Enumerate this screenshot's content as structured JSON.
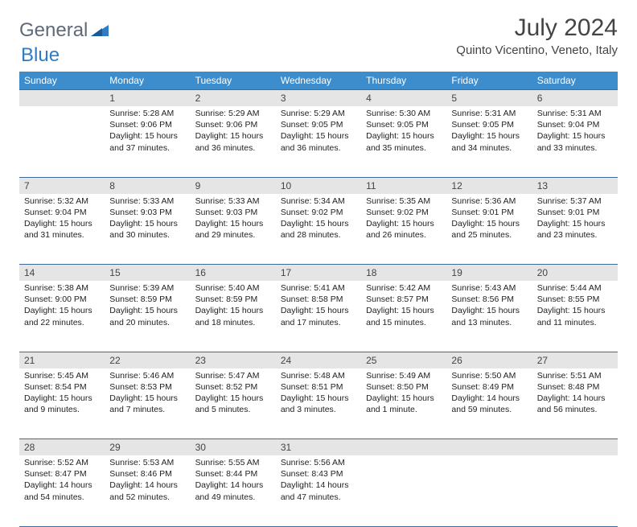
{
  "brand": {
    "name1": "General",
    "name2": "Blue"
  },
  "title": "July 2024",
  "location": "Quinto Vicentino, Veneto, Italy",
  "colors": {
    "header_bg": "#3d8ccc",
    "header_fg": "#ffffff",
    "border": "#3d6a99",
    "daynum_bg": "#e5e5e5",
    "brand_gray": "#5e6a78",
    "brand_blue": "#2e7cc2"
  },
  "weekdays": [
    "Sunday",
    "Monday",
    "Tuesday",
    "Wednesday",
    "Thursday",
    "Friday",
    "Saturday"
  ],
  "weeks": [
    [
      null,
      {
        "n": "1",
        "sr": "Sunrise: 5:28 AM",
        "ss": "Sunset: 9:06 PM",
        "d1": "Daylight: 15 hours",
        "d2": "and 37 minutes."
      },
      {
        "n": "2",
        "sr": "Sunrise: 5:29 AM",
        "ss": "Sunset: 9:06 PM",
        "d1": "Daylight: 15 hours",
        "d2": "and 36 minutes."
      },
      {
        "n": "3",
        "sr": "Sunrise: 5:29 AM",
        "ss": "Sunset: 9:05 PM",
        "d1": "Daylight: 15 hours",
        "d2": "and 36 minutes."
      },
      {
        "n": "4",
        "sr": "Sunrise: 5:30 AM",
        "ss": "Sunset: 9:05 PM",
        "d1": "Daylight: 15 hours",
        "d2": "and 35 minutes."
      },
      {
        "n": "5",
        "sr": "Sunrise: 5:31 AM",
        "ss": "Sunset: 9:05 PM",
        "d1": "Daylight: 15 hours",
        "d2": "and 34 minutes."
      },
      {
        "n": "6",
        "sr": "Sunrise: 5:31 AM",
        "ss": "Sunset: 9:04 PM",
        "d1": "Daylight: 15 hours",
        "d2": "and 33 minutes."
      }
    ],
    [
      {
        "n": "7",
        "sr": "Sunrise: 5:32 AM",
        "ss": "Sunset: 9:04 PM",
        "d1": "Daylight: 15 hours",
        "d2": "and 31 minutes."
      },
      {
        "n": "8",
        "sr": "Sunrise: 5:33 AM",
        "ss": "Sunset: 9:03 PM",
        "d1": "Daylight: 15 hours",
        "d2": "and 30 minutes."
      },
      {
        "n": "9",
        "sr": "Sunrise: 5:33 AM",
        "ss": "Sunset: 9:03 PM",
        "d1": "Daylight: 15 hours",
        "d2": "and 29 minutes."
      },
      {
        "n": "10",
        "sr": "Sunrise: 5:34 AM",
        "ss": "Sunset: 9:02 PM",
        "d1": "Daylight: 15 hours",
        "d2": "and 28 minutes."
      },
      {
        "n": "11",
        "sr": "Sunrise: 5:35 AM",
        "ss": "Sunset: 9:02 PM",
        "d1": "Daylight: 15 hours",
        "d2": "and 26 minutes."
      },
      {
        "n": "12",
        "sr": "Sunrise: 5:36 AM",
        "ss": "Sunset: 9:01 PM",
        "d1": "Daylight: 15 hours",
        "d2": "and 25 minutes."
      },
      {
        "n": "13",
        "sr": "Sunrise: 5:37 AM",
        "ss": "Sunset: 9:01 PM",
        "d1": "Daylight: 15 hours",
        "d2": "and 23 minutes."
      }
    ],
    [
      {
        "n": "14",
        "sr": "Sunrise: 5:38 AM",
        "ss": "Sunset: 9:00 PM",
        "d1": "Daylight: 15 hours",
        "d2": "and 22 minutes."
      },
      {
        "n": "15",
        "sr": "Sunrise: 5:39 AM",
        "ss": "Sunset: 8:59 PM",
        "d1": "Daylight: 15 hours",
        "d2": "and 20 minutes."
      },
      {
        "n": "16",
        "sr": "Sunrise: 5:40 AM",
        "ss": "Sunset: 8:59 PM",
        "d1": "Daylight: 15 hours",
        "d2": "and 18 minutes."
      },
      {
        "n": "17",
        "sr": "Sunrise: 5:41 AM",
        "ss": "Sunset: 8:58 PM",
        "d1": "Daylight: 15 hours",
        "d2": "and 17 minutes."
      },
      {
        "n": "18",
        "sr": "Sunrise: 5:42 AM",
        "ss": "Sunset: 8:57 PM",
        "d1": "Daylight: 15 hours",
        "d2": "and 15 minutes."
      },
      {
        "n": "19",
        "sr": "Sunrise: 5:43 AM",
        "ss": "Sunset: 8:56 PM",
        "d1": "Daylight: 15 hours",
        "d2": "and 13 minutes."
      },
      {
        "n": "20",
        "sr": "Sunrise: 5:44 AM",
        "ss": "Sunset: 8:55 PM",
        "d1": "Daylight: 15 hours",
        "d2": "and 11 minutes."
      }
    ],
    [
      {
        "n": "21",
        "sr": "Sunrise: 5:45 AM",
        "ss": "Sunset: 8:54 PM",
        "d1": "Daylight: 15 hours",
        "d2": "and 9 minutes."
      },
      {
        "n": "22",
        "sr": "Sunrise: 5:46 AM",
        "ss": "Sunset: 8:53 PM",
        "d1": "Daylight: 15 hours",
        "d2": "and 7 minutes."
      },
      {
        "n": "23",
        "sr": "Sunrise: 5:47 AM",
        "ss": "Sunset: 8:52 PM",
        "d1": "Daylight: 15 hours",
        "d2": "and 5 minutes."
      },
      {
        "n": "24",
        "sr": "Sunrise: 5:48 AM",
        "ss": "Sunset: 8:51 PM",
        "d1": "Daylight: 15 hours",
        "d2": "and 3 minutes."
      },
      {
        "n": "25",
        "sr": "Sunrise: 5:49 AM",
        "ss": "Sunset: 8:50 PM",
        "d1": "Daylight: 15 hours",
        "d2": "and 1 minute."
      },
      {
        "n": "26",
        "sr": "Sunrise: 5:50 AM",
        "ss": "Sunset: 8:49 PM",
        "d1": "Daylight: 14 hours",
        "d2": "and 59 minutes."
      },
      {
        "n": "27",
        "sr": "Sunrise: 5:51 AM",
        "ss": "Sunset: 8:48 PM",
        "d1": "Daylight: 14 hours",
        "d2": "and 56 minutes."
      }
    ],
    [
      {
        "n": "28",
        "sr": "Sunrise: 5:52 AM",
        "ss": "Sunset: 8:47 PM",
        "d1": "Daylight: 14 hours",
        "d2": "and 54 minutes."
      },
      {
        "n": "29",
        "sr": "Sunrise: 5:53 AM",
        "ss": "Sunset: 8:46 PM",
        "d1": "Daylight: 14 hours",
        "d2": "and 52 minutes."
      },
      {
        "n": "30",
        "sr": "Sunrise: 5:55 AM",
        "ss": "Sunset: 8:44 PM",
        "d1": "Daylight: 14 hours",
        "d2": "and 49 minutes."
      },
      {
        "n": "31",
        "sr": "Sunrise: 5:56 AM",
        "ss": "Sunset: 8:43 PM",
        "d1": "Daylight: 14 hours",
        "d2": "and 47 minutes."
      },
      null,
      null,
      null
    ]
  ]
}
